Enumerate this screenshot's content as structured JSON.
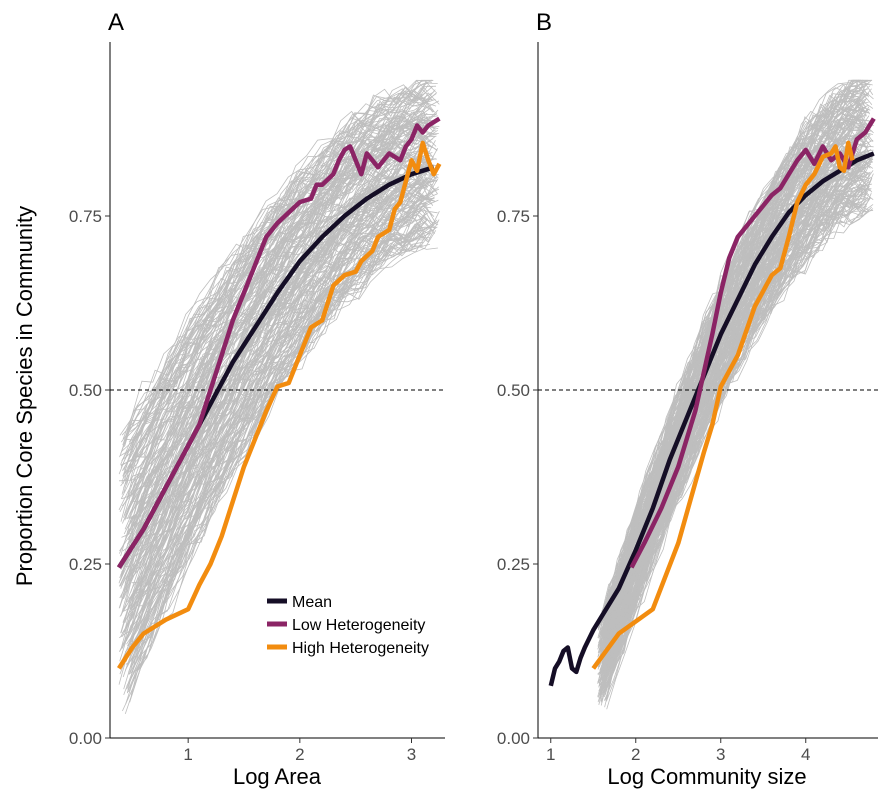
{
  "colors": {
    "background_lines": "#bebebe",
    "mean": "#150e26",
    "low": "#8b2465",
    "high": "#f28c0f",
    "reference": "#000000"
  },
  "legend": {
    "mean": "Mean",
    "low": "Low Heterogeneity",
    "high": "High Heterogeneity"
  },
  "ylabel": "Proportion Core Species in Community",
  "chart_data": [
    {
      "type": "line",
      "panel": "A",
      "xlabel": "Log Area",
      "ylabel": "Proportion Core Species in Community",
      "xlim": [
        0.3,
        3.3
      ],
      "ylim": [
        0,
        1.0
      ],
      "xticks": [
        1,
        2,
        3
      ],
      "yticks": [
        0.0,
        0.25,
        0.5,
        0.75
      ],
      "ytick_labels": [
        "0.00",
        "0.25",
        "0.50",
        "0.75"
      ],
      "reference_line_y": 0.5,
      "grid": false,
      "legend_position": "bottom-right",
      "background_ensemble": {
        "x_start": 0.38,
        "x_end": 3.25,
        "lower_start": 0.05,
        "upper_start": 0.44,
        "lower_end": 0.72,
        "upper_end": 0.94
      },
      "series": [
        {
          "name": "Mean",
          "key": "mean",
          "x": [
            0.38,
            0.6,
            0.8,
            1.0,
            1.2,
            1.4,
            1.6,
            1.8,
            2.0,
            2.2,
            2.4,
            2.6,
            2.8,
            3.0,
            3.2
          ],
          "y": [
            0.245,
            0.3,
            0.36,
            0.42,
            0.48,
            0.54,
            0.59,
            0.64,
            0.685,
            0.72,
            0.75,
            0.775,
            0.795,
            0.81,
            0.82
          ]
        },
        {
          "name": "Low Heterogeneity",
          "key": "low",
          "x": [
            0.38,
            0.6,
            0.8,
            1.0,
            1.1,
            1.2,
            1.3,
            1.4,
            1.6,
            1.7,
            1.8,
            1.9,
            2.0,
            2.1,
            2.15,
            2.2,
            2.3,
            2.35,
            2.4,
            2.45,
            2.5,
            2.55,
            2.6,
            2.65,
            2.7,
            2.8,
            2.9,
            2.95,
            3.0,
            3.05,
            3.1,
            3.15,
            3.25
          ],
          "y": [
            0.245,
            0.3,
            0.36,
            0.42,
            0.45,
            0.5,
            0.55,
            0.6,
            0.68,
            0.72,
            0.74,
            0.755,
            0.77,
            0.775,
            0.795,
            0.795,
            0.81,
            0.83,
            0.845,
            0.85,
            0.83,
            0.81,
            0.84,
            0.83,
            0.82,
            0.84,
            0.83,
            0.85,
            0.86,
            0.88,
            0.87,
            0.88,
            0.89
          ]
        },
        {
          "name": "High Heterogeneity",
          "key": "high",
          "x": [
            0.38,
            0.5,
            0.6,
            0.8,
            1.0,
            1.1,
            1.2,
            1.3,
            1.4,
            1.5,
            1.6,
            1.7,
            1.8,
            1.9,
            2.0,
            2.1,
            2.15,
            2.2,
            2.3,
            2.4,
            2.5,
            2.55,
            2.65,
            2.7,
            2.8,
            2.85,
            2.9,
            2.95,
            3.0,
            3.05,
            3.1,
            3.15,
            3.2,
            3.25
          ],
          "y": [
            0.1,
            0.13,
            0.15,
            0.17,
            0.185,
            0.22,
            0.25,
            0.29,
            0.34,
            0.39,
            0.43,
            0.47,
            0.505,
            0.51,
            0.55,
            0.59,
            0.595,
            0.6,
            0.65,
            0.665,
            0.67,
            0.685,
            0.7,
            0.72,
            0.73,
            0.76,
            0.77,
            0.8,
            0.83,
            0.815,
            0.855,
            0.83,
            0.81,
            0.825
          ]
        }
      ]
    },
    {
      "type": "line",
      "panel": "B",
      "xlabel": "Log Community size",
      "ylabel": "",
      "xlim": [
        0.85,
        4.85
      ],
      "ylim": [
        0,
        1.0
      ],
      "xticks": [
        1,
        2,
        3,
        4,
        5
      ],
      "yticks": [
        0.0,
        0.25,
        0.5,
        0.75
      ],
      "ytick_labels": [
        "0.00",
        "0.25",
        "0.50",
        "0.75"
      ],
      "reference_line_y": 0.5,
      "grid": false,
      "background_ensemble": {
        "x_start": 1.55,
        "x_end": 4.8,
        "lower_start": 0.05,
        "upper_start": 0.17,
        "lower_end": 0.76,
        "upper_end": 0.95
      },
      "series": [
        {
          "name": "Mean",
          "key": "mean",
          "x": [
            1.0,
            1.05,
            1.1,
            1.15,
            1.2,
            1.25,
            1.3,
            1.35,
            1.4,
            1.5,
            1.6,
            1.8,
            2.0,
            2.2,
            2.4,
            2.6,
            2.8,
            3.0,
            3.2,
            3.4,
            3.6,
            3.8,
            4.0,
            4.2,
            4.4,
            4.6,
            4.8
          ],
          "y": [
            0.075,
            0.1,
            0.11,
            0.125,
            0.13,
            0.1,
            0.095,
            0.115,
            0.13,
            0.155,
            0.175,
            0.215,
            0.27,
            0.33,
            0.4,
            0.46,
            0.52,
            0.58,
            0.63,
            0.68,
            0.72,
            0.755,
            0.78,
            0.8,
            0.815,
            0.83,
            0.84
          ]
        },
        {
          "name": "Low Heterogeneity",
          "key": "low",
          "x": [
            1.95,
            2.1,
            2.3,
            2.5,
            2.7,
            2.9,
            3.0,
            3.1,
            3.2,
            3.4,
            3.6,
            3.7,
            3.8,
            3.9,
            4.0,
            4.1,
            4.2,
            4.3,
            4.4,
            4.5,
            4.6,
            4.7,
            4.8
          ],
          "y": [
            0.245,
            0.28,
            0.33,
            0.39,
            0.47,
            0.58,
            0.64,
            0.69,
            0.72,
            0.75,
            0.78,
            0.79,
            0.81,
            0.83,
            0.845,
            0.825,
            0.85,
            0.83,
            0.84,
            0.82,
            0.86,
            0.87,
            0.89
          ]
        },
        {
          "name": "High Heterogeneity",
          "key": "high",
          "x": [
            1.5,
            1.8,
            2.2,
            2.5,
            2.8,
            2.9,
            3.0,
            3.2,
            3.4,
            3.6,
            3.7,
            3.8,
            3.9,
            4.0,
            4.1,
            4.2,
            4.3,
            4.35,
            4.4,
            4.45,
            4.5,
            4.55
          ],
          "y": [
            0.1,
            0.15,
            0.185,
            0.28,
            0.41,
            0.45,
            0.505,
            0.55,
            0.62,
            0.665,
            0.675,
            0.72,
            0.77,
            0.795,
            0.81,
            0.835,
            0.84,
            0.85,
            0.82,
            0.815,
            0.855,
            0.83
          ]
        }
      ]
    }
  ]
}
